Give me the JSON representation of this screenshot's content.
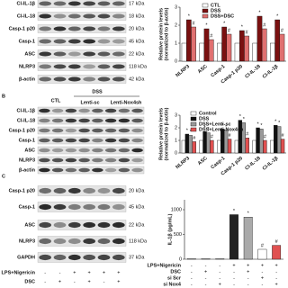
{
  "chart_data": [
    {
      "type": "bar",
      "ylabel": [
        "Relative protein levels",
        "(normalized to β-actin)"
      ],
      "categories": [
        "NLRP3",
        "ASC",
        "Casp-1",
        "Casp-1 p20",
        "Cl-IL-18",
        "Cl-IL-1β"
      ],
      "series": [
        {
          "name": "CTL",
          "color": "#ffffff",
          "values": [
            1,
            1,
            1,
            1,
            1,
            1
          ]
        },
        {
          "name": "DSS",
          "color": "#7a1010",
          "values": [
            2.3,
            1.8,
            1.9,
            1.7,
            2.5,
            2.3
          ],
          "marks": [
            "*",
            "*",
            "*",
            "*",
            "*",
            "*"
          ]
        },
        {
          "name": "DSS+DSC",
          "color": "#e07070",
          "values": [
            1.9,
            1.2,
            1.5,
            1.4,
            1.8,
            1.5
          ],
          "marks": [
            "#",
            "#",
            "#",
            "#",
            "#",
            "#"
          ]
        }
      ],
      "ylim": [
        0,
        3
      ],
      "yticks": [
        0,
        1,
        2,
        3
      ]
    },
    {
      "type": "bar",
      "ylabel": [
        "Relative protein levels",
        "(normalized to β-actin)"
      ],
      "categories": [
        "NLRP3",
        "ASC",
        "Casp-1",
        "Casp-1 p20",
        "Cl-IL-18",
        "Cl-IL-1β"
      ],
      "series": [
        {
          "name": "Control",
          "color": "#ffffff",
          "values": [
            1,
            1,
            1,
            1,
            1,
            1
          ]
        },
        {
          "name": "DSS",
          "color": "#111111",
          "values": [
            1.5,
            1.7,
            1.9,
            2.6,
            2.0,
            2.2
          ],
          "marks": [
            "*",
            "*",
            "*",
            "*",
            "*",
            "*"
          ]
        },
        {
          "name": "DSS+Lenti-sc",
          "color": "#9a9a9a",
          "values": [
            1.4,
            1.6,
            1.8,
            2.4,
            1.9,
            2.1
          ],
          "marks": [
            "*",
            "*",
            "*",
            "*",
            "*",
            "*"
          ]
        },
        {
          "name": "DSS+Lenti-Nox4sh",
          "color": "#e05050",
          "values": [
            0.9,
            1.0,
            1.1,
            1.2,
            1.0,
            1.1
          ],
          "marks": [
            "#",
            "#",
            "#",
            "#",
            "#",
            "#"
          ]
        }
      ],
      "ylim": [
        0,
        3
      ],
      "yticks": [
        0,
        1,
        2,
        3
      ]
    },
    {
      "type": "bar",
      "ylabel": [
        "IL-1β (pg/mL)"
      ],
      "values": [
        10,
        12,
        10,
        900,
        850,
        200,
        280
      ],
      "colors": [
        "#ffffff",
        "#ffffff",
        "#ffffff",
        "#222222",
        "#aaaaaa",
        "#ffffff",
        "#e05050"
      ],
      "marks": [
        null,
        null,
        null,
        "*",
        "*",
        "#",
        "#"
      ],
      "ylim": [
        0,
        1200
      ],
      "yticks": [
        0,
        500,
        1000
      ],
      "treatments": [
        {
          "name": "LPS+Nigericin",
          "signs": [
            "-",
            "-",
            "-",
            "+",
            "+",
            "+",
            "+"
          ]
        },
        {
          "name": "DSC",
          "signs": [
            "-",
            "+",
            "-",
            "-",
            "+",
            "-",
            "-"
          ]
        },
        {
          "name": "si Scr",
          "signs": [
            "-",
            "-",
            "-",
            "-",
            "-",
            "+",
            "-"
          ]
        },
        {
          "name": "si Nox4",
          "signs": [
            "-",
            "-",
            "+",
            "-",
            "-",
            "-",
            "+"
          ]
        }
      ]
    }
  ],
  "blots": [
    {
      "rows": [
        {
          "name": "Cl-IL-1β",
          "size": "17 kDa"
        },
        {
          "name": "Cl-IL-18",
          "size": "18 kDa"
        },
        {
          "name": "Casp-1 p20",
          "size": "20 kDa"
        },
        {
          "name": "Casp-1",
          "size": "45 kDa"
        },
        {
          "name": "ASC",
          "size": "22 kDa"
        },
        {
          "name": "NLRP3",
          "size": "118 kDa"
        },
        {
          "name": "β-actin",
          "size": "42 kDa"
        }
      ]
    },
    {
      "panel": "B",
      "lanes": [
        "CTL",
        "DSS",
        "Lenti-sc",
        "Lenti-Nox4sh"
      ],
      "rows": [
        {
          "name": "Cl-IL-1β"
        },
        {
          "name": "Cl-IL-18"
        },
        {
          "name": "Casp-1 p20"
        },
        {
          "name": "Casp-1"
        },
        {
          "name": "ASC"
        },
        {
          "name": "NLRP3"
        },
        {
          "name": "β-actin"
        }
      ]
    },
    {
      "panel": "C",
      "rows": [
        {
          "name": "Casp-1 p20",
          "size": "20 kDa"
        },
        {
          "name": "Casp-1",
          "size": "45 kDa"
        },
        {
          "name": "ASC",
          "size": "22 kDa"
        },
        {
          "name": "NLRP3",
          "size": "118 kDa"
        },
        {
          "name": "GAPDH",
          "size": "37 kDa"
        }
      ],
      "treatments": [
        {
          "name": "LPS+Nigericin",
          "signs": [
            "-",
            "-",
            "+",
            "+",
            "+",
            "+"
          ]
        },
        {
          "name": "DSC",
          "signs": [
            "-",
            "+",
            "-",
            "+",
            "-",
            "+"
          ]
        }
      ]
    }
  ]
}
